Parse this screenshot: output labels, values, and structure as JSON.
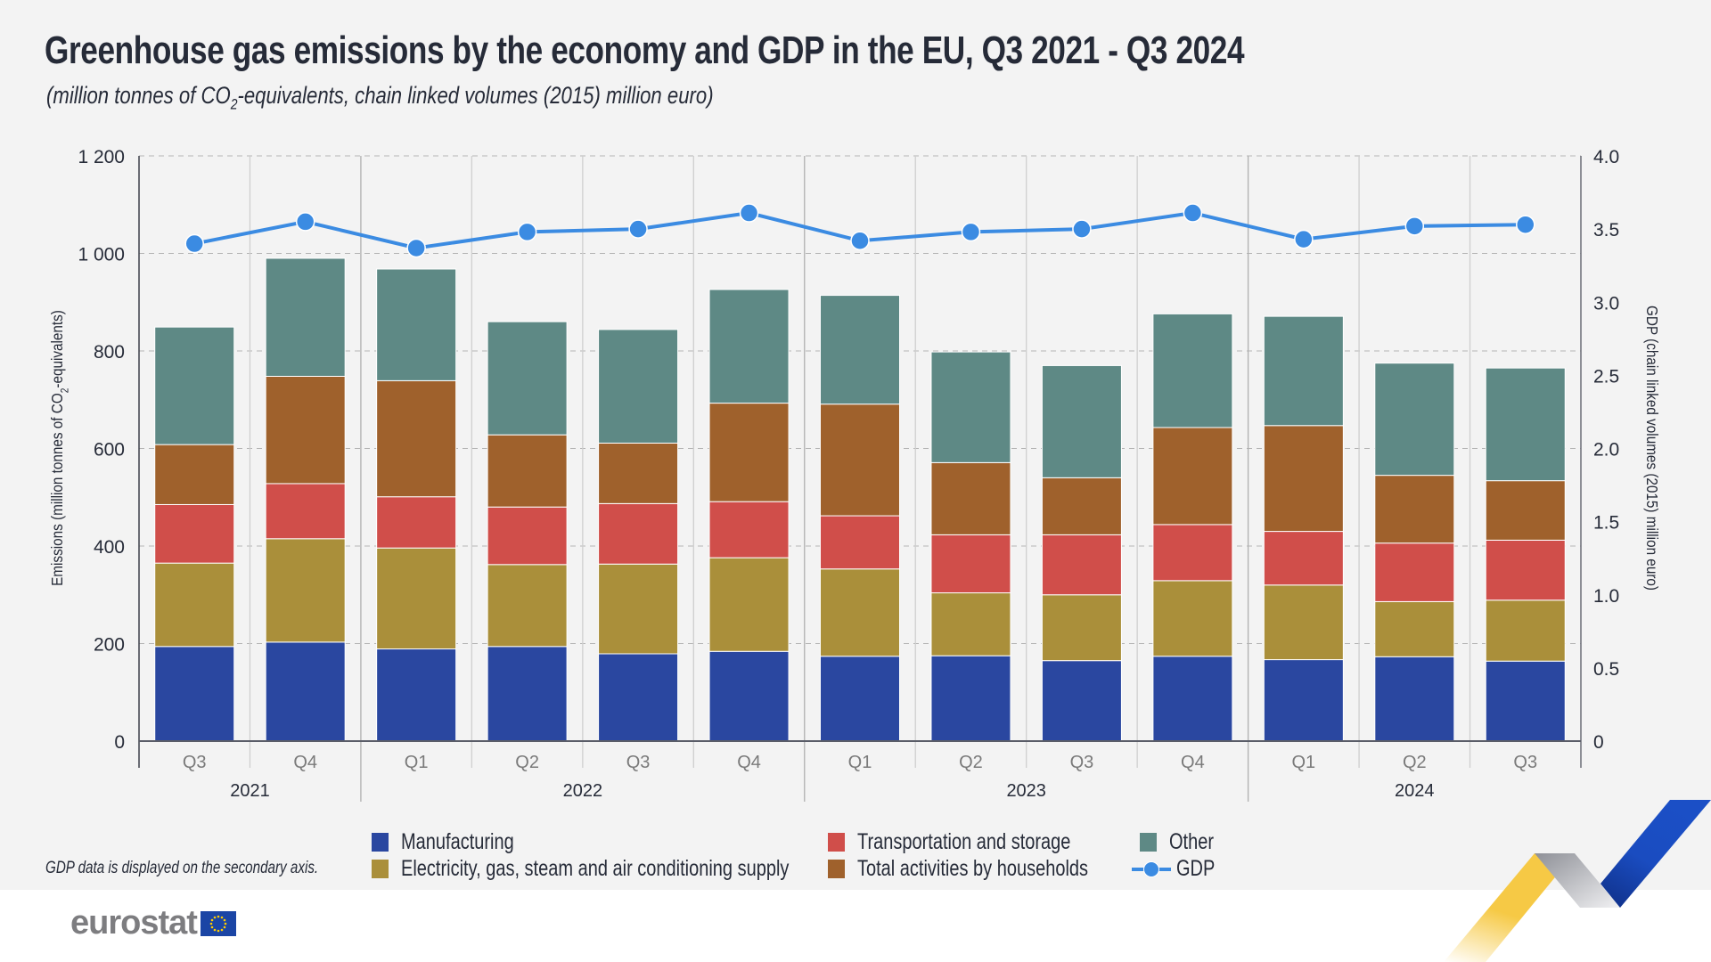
{
  "header": {
    "title": "Greenhouse gas emissions by the economy and GDP in the EU, Q3 2021 - Q3 2024",
    "subtitle_pre": "(million tonnes of CO",
    "subtitle_sub": "2",
    "subtitle_post": "-equivalents, chain linked volumes (2015) million euro)"
  },
  "note": "GDP data is displayed on the secondary axis.",
  "logo": {
    "text": "eurostat"
  },
  "colors": {
    "Manufacturing": "#2a47a0",
    "Electricity": "#aa8f3a",
    "Transportation": "#d04e4a",
    "Households": "#9f612c",
    "Other": "#5e8985",
    "GDP": "#3b8be2"
  },
  "legend": [
    {
      "label": "Manufacturing",
      "key": "Manufacturing"
    },
    {
      "label": "Electricity, gas, steam and air conditioning supply",
      "key": "Electricity"
    },
    {
      "label": "Transportation and storage",
      "key": "Transportation"
    },
    {
      "label": "Total activities by households",
      "key": "Households"
    },
    {
      "label": "Other",
      "key": "Other"
    },
    {
      "label": "GDP",
      "key": "GDP"
    }
  ],
  "chart_data": {
    "type": "bar",
    "stacked": true,
    "title": "Greenhouse gas emissions by the economy and GDP in the EU, Q3 2021 - Q3 2024",
    "subtitle": "(million tonnes of CO2-equivalents, chain linked volumes (2015) million euro)",
    "categories": [
      "Q3",
      "Q4",
      "Q1",
      "Q2",
      "Q3",
      "Q4",
      "Q1",
      "Q2",
      "Q3",
      "Q4",
      "Q1",
      "Q2",
      "Q3"
    ],
    "category_years": [
      "2021",
      "2021",
      "2022",
      "2022",
      "2022",
      "2022",
      "2023",
      "2023",
      "2023",
      "2023",
      "2024",
      "2024",
      "2024"
    ],
    "year_groups": [
      {
        "label": "2021",
        "count": 2
      },
      {
        "label": "2022",
        "count": 4
      },
      {
        "label": "2023",
        "count": 4
      },
      {
        "label": "2024",
        "count": 3
      }
    ],
    "ylabel": "Emissions (million tonnes of CO2-equivalents)",
    "ylabel_pre": "Emissions (million tonnes of CO",
    "ylabel_sub": "2",
    "ylabel_post": "-equivalents)",
    "ylim": [
      0,
      1200
    ],
    "yticks": [
      0,
      200,
      400,
      600,
      800,
      1000,
      1200
    ],
    "ytick_labels": [
      "0",
      "200",
      "400",
      "600",
      "800",
      "1 000",
      "1 200"
    ],
    "y2label": "GDP (chain linked volumes (2015) million euro)",
    "y2lim": [
      0,
      4.0
    ],
    "y2tick_labels": [
      "0",
      "0.5",
      "1.0",
      "1.5",
      "2.0",
      "2.5",
      "3.0",
      "3.5",
      "4.0"
    ],
    "grid": true,
    "legend_position": "bottom",
    "series": [
      {
        "name": "Manufacturing",
        "key": "Manufacturing",
        "axis": "left",
        "type": "bar",
        "values": [
          194,
          203,
          189,
          194,
          179,
          184,
          174,
          175,
          165,
          174,
          167,
          173,
          164
        ]
      },
      {
        "name": "Electricity, gas, steam and air conditioning supply",
        "key": "Electricity",
        "axis": "left",
        "type": "bar",
        "values": [
          171,
          212,
          207,
          168,
          184,
          192,
          179,
          129,
          135,
          155,
          153,
          113,
          125
        ]
      },
      {
        "name": "Transportation and storage",
        "key": "Transportation",
        "axis": "left",
        "type": "bar",
        "values": [
          120,
          113,
          105,
          118,
          124,
          115,
          109,
          119,
          123,
          115,
          110,
          120,
          123
        ]
      },
      {
        "name": "Total activities by households",
        "key": "Households",
        "axis": "left",
        "type": "bar",
        "values": [
          123,
          220,
          238,
          148,
          124,
          202,
          229,
          148,
          117,
          199,
          217,
          139,
          122
        ]
      },
      {
        "name": "Other",
        "key": "Other",
        "axis": "left",
        "type": "bar",
        "values": [
          241,
          242,
          229,
          232,
          233,
          233,
          223,
          227,
          230,
          233,
          224,
          230,
          231
        ]
      },
      {
        "name": "GDP",
        "key": "GDP",
        "axis": "right",
        "type": "line",
        "values": [
          3.4,
          3.55,
          3.37,
          3.48,
          3.5,
          3.61,
          3.42,
          3.48,
          3.5,
          3.61,
          3.43,
          3.52,
          3.53
        ]
      }
    ]
  }
}
